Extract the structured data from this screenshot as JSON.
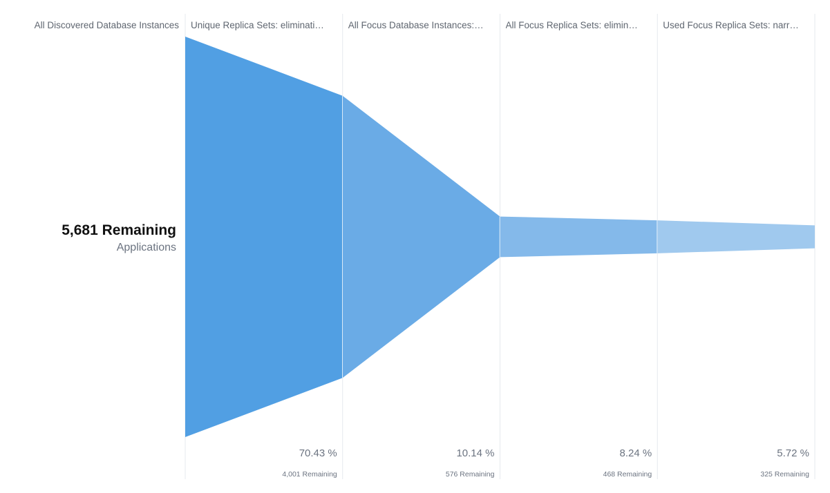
{
  "chart_data": {
    "type": "funnel",
    "total": {
      "value": "5,681",
      "remaining_word": "Remaining",
      "unit": "Applications",
      "header": "All Discovered Database Instances"
    },
    "stages": [
      {
        "header": "Unique Replica Sets: eliminati…",
        "remaining": 4001,
        "percent": 70.43,
        "percent_label": "70.43 %",
        "remaining_label": "4,001 Remaining"
      },
      {
        "header": "All Focus Database Instances:…",
        "remaining": 576,
        "percent": 10.14,
        "percent_label": "10.14 %",
        "remaining_label": "576 Remaining"
      },
      {
        "header": "All Focus Replica Sets: elimin…",
        "remaining": 468,
        "percent": 8.24,
        "percent_label": "8.24 %",
        "remaining_label": "468 Remaining"
      },
      {
        "header": "Used Focus Replica Sets: narr…",
        "remaining": 325,
        "percent": 5.72,
        "percent_label": "5.72 %",
        "remaining_label": "325 Remaining"
      }
    ]
  },
  "colors": {
    "segments": [
      "#519fe3",
      "#6aabe6",
      "#84b9ea",
      "#a0c9ee"
    ],
    "divider": "#e6e9ed",
    "text": "#5f6670",
    "strong": "#111111"
  }
}
